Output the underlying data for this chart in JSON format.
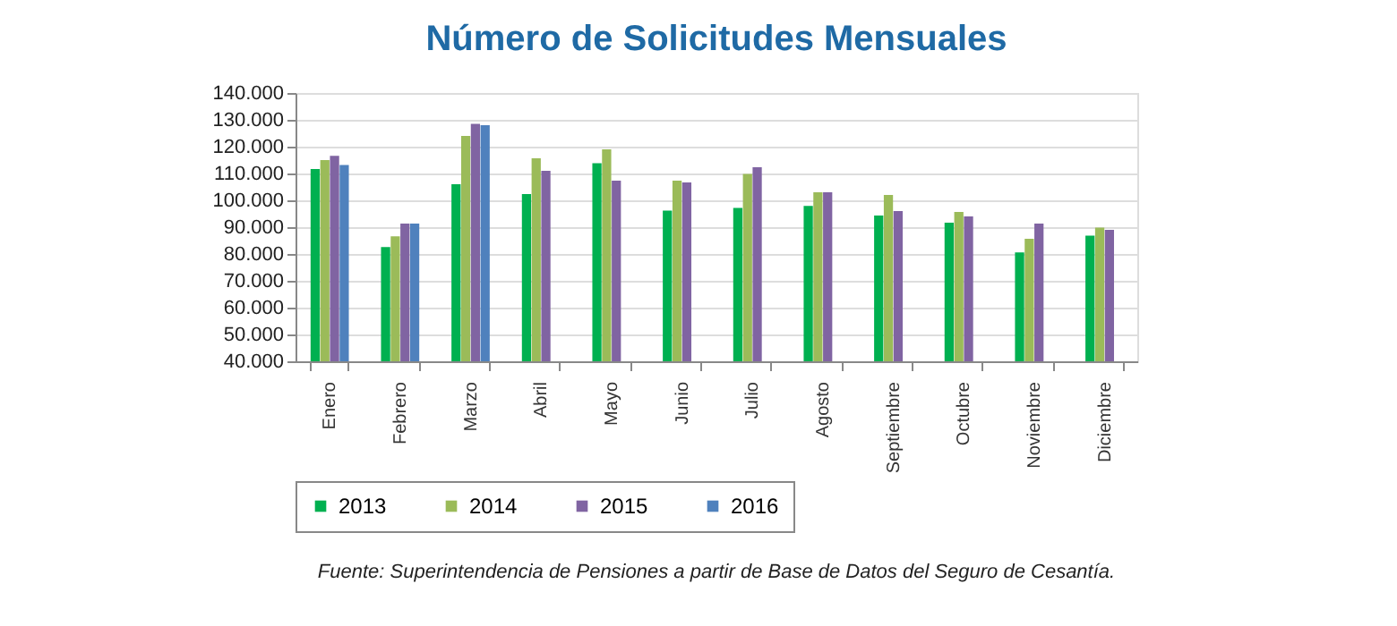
{
  "chart_data": {
    "type": "bar",
    "title": "Número de Solicitudes Mensuales",
    "categories": [
      "Enero",
      "Febrero",
      "Marzo",
      "Abril",
      "Mayo",
      "Junio",
      "Julio",
      "Agosto",
      "Septiembre",
      "Octubre",
      "Noviembre",
      "Diciembre"
    ],
    "series": [
      {
        "name": "2013",
        "color": "#00b050",
        "values": [
          111700,
          82600,
          106000,
          102300,
          113800,
          96200,
          97200,
          97900,
          94300,
          91700,
          80600,
          86800
        ]
      },
      {
        "name": "2014",
        "color": "#9bbb59",
        "values": [
          115000,
          86600,
          124000,
          115700,
          119000,
          107300,
          109800,
          103000,
          102000,
          95700,
          85700,
          89800
        ]
      },
      {
        "name": "2015",
        "color": "#8064a2",
        "values": [
          116600,
          91300,
          128500,
          111000,
          107300,
          106700,
          112300,
          103000,
          96000,
          94000,
          91300,
          89000
        ]
      },
      {
        "name": "2016",
        "color": "#4f81bd",
        "values": [
          113200,
          91300,
          128000,
          null,
          null,
          null,
          null,
          null,
          null,
          null,
          null,
          null
        ]
      }
    ],
    "ylim": [
      40000,
      140000
    ],
    "yticks": [
      {
        "value": 40000,
        "label": "40.000"
      },
      {
        "value": 50000,
        "label": "50.000"
      },
      {
        "value": 60000,
        "label": "60.000"
      },
      {
        "value": 70000,
        "label": "70.000"
      },
      {
        "value": 80000,
        "label": "80.000"
      },
      {
        "value": 90000,
        "label": "90.000"
      },
      {
        "value": 100000,
        "label": "100.000"
      },
      {
        "value": 110000,
        "label": "110.000"
      },
      {
        "value": 120000,
        "label": "120.000"
      },
      {
        "value": 130000,
        "label": "130.000"
      },
      {
        "value": 140000,
        "label": "140.000"
      }
    ],
    "grid": "y",
    "legend": "bottom",
    "annotations": [
      "Fuente: Superintendencia de Pensiones a partir de Base de Datos del Seguro de Cesantía."
    ]
  }
}
